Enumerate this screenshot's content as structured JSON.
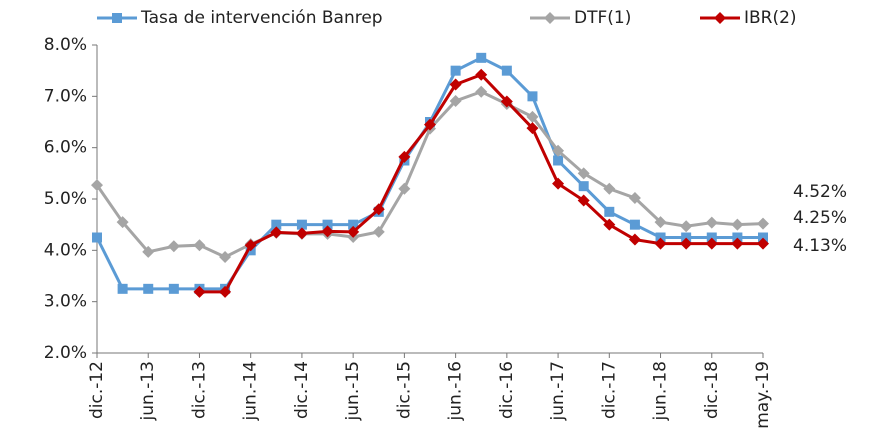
{
  "chart_data": {
    "type": "line",
    "categories": [
      "dic.-12",
      null,
      "jun.-13",
      null,
      "dic.-13",
      null,
      "jun.-14",
      null,
      "dic.-14",
      null,
      "jun.-15",
      null,
      "dic.-15",
      null,
      "jun.-16",
      null,
      "dic.-16",
      null,
      "jun.-17",
      null,
      "dic.-17",
      null,
      "jun.-18",
      null,
      "dic.-18",
      null,
      "may.-19"
    ],
    "series": [
      {
        "name": "Tasa de intervención Banrep",
        "color": "#5b9bd5",
        "marker": "square",
        "values": [
          4.25,
          3.25,
          3.25,
          3.25,
          3.25,
          3.25,
          4.0,
          4.5,
          4.5,
          4.5,
          4.5,
          4.75,
          5.75,
          6.5,
          7.5,
          7.75,
          7.5,
          7.0,
          5.75,
          5.25,
          4.75,
          4.5,
          4.25,
          4.25,
          4.25,
          4.25,
          4.25
        ]
      },
      {
        "name": "DTF(1)",
        "color": "#a5a5a5",
        "marker": "diamond",
        "values": [
          5.27,
          4.55,
          3.97,
          4.08,
          4.1,
          3.87,
          4.12,
          4.34,
          4.32,
          4.32,
          4.26,
          4.36,
          5.2,
          6.37,
          6.91,
          7.09,
          6.85,
          6.6,
          5.94,
          5.5,
          5.2,
          5.02,
          4.55,
          4.47,
          4.54,
          4.5,
          4.52
        ]
      },
      {
        "name": "IBR(2)",
        "color": "#c00000",
        "marker": "diamond",
        "values": [
          null,
          null,
          null,
          null,
          3.19,
          3.19,
          4.1,
          4.35,
          4.33,
          4.37,
          4.36,
          4.8,
          5.82,
          6.45,
          7.23,
          7.42,
          6.9,
          6.38,
          5.3,
          4.97,
          4.5,
          4.21,
          4.13,
          4.13,
          4.13,
          4.13,
          4.13
        ]
      }
    ],
    "ylim": [
      2,
      8
    ],
    "yticks": [
      {
        "value": 2,
        "label": "2.0%"
      },
      {
        "value": 3,
        "label": "3.0%"
      },
      {
        "value": 4,
        "label": "4.0%"
      },
      {
        "value": 5,
        "label": "5.0%"
      },
      {
        "value": 6,
        "label": "6.0%"
      },
      {
        "value": 7,
        "label": "7.0%"
      },
      {
        "value": 8,
        "label": "8.0%"
      }
    ],
    "annotations": [
      {
        "text": "4.52%",
        "color": "#222222"
      },
      {
        "text": "4.25%",
        "color": "#5b9bd5"
      },
      {
        "text": "4.13%",
        "color": "#e8203a"
      }
    ],
    "legend": "top",
    "grid": false
  }
}
